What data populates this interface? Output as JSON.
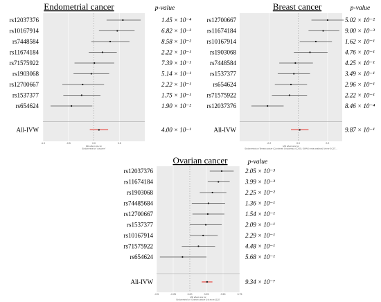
{
  "chart_data": [
    {
      "type": "forest",
      "title": "Endometrial cancer",
      "pvalue_header": "p-value",
      "xlim": [
        -1.0,
        1.0
      ],
      "xticks": [
        "-1.0",
        "-0.5",
        "0.0",
        "0.5"
      ],
      "xlabel_line1": "MR effect size for",
      "xlabel_line2": "Endometrial on 'outcome'",
      "grid": true,
      "snps": [
        {
          "label": "rs12037376",
          "est": 0.57,
          "lo": 0.25,
          "hi": 0.92,
          "p": "1.45 × 10⁻⁴"
        },
        {
          "label": "rs10167914",
          "est": 0.46,
          "lo": 0.1,
          "hi": 0.8,
          "p": "6.82 × 10⁻³"
        },
        {
          "label": "rs7448584",
          "est": 0.32,
          "lo": -0.05,
          "hi": 0.7,
          "p": "8.58 × 10⁻²"
        },
        {
          "label": "rs11674184",
          "est": 0.17,
          "lo": -0.1,
          "hi": 0.45,
          "p": "2.22 × 10⁻¹"
        },
        {
          "label": "rs71575922",
          "est": 0.01,
          "lo": -0.38,
          "hi": 0.4,
          "p": "7.39 × 10⁻¹"
        },
        {
          "label": "rs1903068",
          "est": -0.05,
          "lo": -0.4,
          "hi": 0.3,
          "p": "5.14 × 10⁻¹"
        },
        {
          "label": "rs12700667",
          "est": -0.22,
          "lo": -0.62,
          "hi": 0.2,
          "p": "2.22 × 10⁻¹"
        },
        {
          "label": "rs1537377",
          "est": -0.24,
          "lo": -0.6,
          "hi": 0.13,
          "p": "1.75 × 10⁻¹"
        },
        {
          "label": "rs654624",
          "est": -0.44,
          "lo": -0.85,
          "hi": -0.03,
          "p": "1.90 × 10⁻²"
        }
      ],
      "summary": {
        "label": "All-IVW",
        "est": 0.1,
        "lo": -0.08,
        "hi": 0.28,
        "p": "4.00 × 10⁻¹"
      }
    },
    {
      "type": "forest",
      "title": "Breast cancer",
      "pvalue_header": "p-value",
      "xlim": [
        -0.4,
        0.3
      ],
      "xticks": [
        "-0.2",
        "0.0",
        "0.2"
      ],
      "xlabel_line1": "MR effect size for",
      "xlabel_line2": "Endometrial on 'Breast cancer (Combined Oncoarray; iCOGS; GWAS meta analysis)' (ebi-a-GCST...",
      "grid": true,
      "snps": [
        {
          "label": "rs12700667",
          "est": 0.2,
          "lo": 0.09,
          "hi": 0.31,
          "p": "5.02 × 10⁻²"
        },
        {
          "label": "rs11674184",
          "est": 0.17,
          "lo": 0.07,
          "hi": 0.28,
          "p": "9.00 × 10⁻³"
        },
        {
          "label": "rs10167914",
          "est": 0.12,
          "lo": 0.01,
          "hi": 0.23,
          "p": "1.62 × 10⁻¹"
        },
        {
          "label": "rs1903068",
          "est": 0.08,
          "lo": -0.03,
          "hi": 0.2,
          "p": "4.76 × 10⁻¹"
        },
        {
          "label": "rs7448584",
          "est": -0.02,
          "lo": -0.13,
          "hi": 0.1,
          "p": "4.25 × 10⁻¹"
        },
        {
          "label": "rs1537377",
          "est": -0.03,
          "lo": -0.14,
          "hi": 0.08,
          "p": "3.49 × 10⁻¹"
        },
        {
          "label": "rs654624",
          "est": -0.05,
          "lo": -0.16,
          "hi": 0.06,
          "p": "2.96 × 10⁻¹"
        },
        {
          "label": "rs71575922",
          "est": -0.06,
          "lo": -0.18,
          "hi": 0.06,
          "p": "2.22 × 10⁻¹"
        },
        {
          "label": "rs12037376",
          "est": -0.21,
          "lo": -0.32,
          "hi": -0.1,
          "p": "8.46 × 10⁻⁴"
        }
      ],
      "summary": {
        "label": "All-IVW",
        "est": 0.01,
        "lo": -0.05,
        "hi": 0.07,
        "p": "9.87 × 10⁻¹"
      }
    },
    {
      "type": "forest",
      "title": "Ovarian cancer",
      "pvalue_header": "p-value",
      "xlim": [
        -0.5,
        0.75
      ],
      "xticks": [
        "-0.5",
        "-0.25",
        "0.00",
        "0.25",
        "0.50",
        "0.75"
      ],
      "xlabel_line1": "MR effect size for",
      "xlabel_line2": "Endometrial on 'Ovarian cancer || id:ieu-a-1120'",
      "grid": true,
      "snps": [
        {
          "label": "rs12037376",
          "est": 0.48,
          "lo": 0.3,
          "hi": 0.66,
          "p": "2.05 × 10⁻³"
        },
        {
          "label": "rs11674184",
          "est": 0.43,
          "lo": 0.27,
          "hi": 0.6,
          "p": "3.99 × 10⁻³"
        },
        {
          "label": "rs1903068",
          "est": 0.34,
          "lo": 0.15,
          "hi": 0.55,
          "p": "2.25 × 10⁻²"
        },
        {
          "label": "rs74485684",
          "est": 0.28,
          "lo": 0.03,
          "hi": 0.53,
          "p": "1.36 × 10⁻¹"
        },
        {
          "label": "rs12700667",
          "est": 0.27,
          "lo": 0.04,
          "hi": 0.52,
          "p": "1.54 × 10⁻¹"
        },
        {
          "label": "rs1537377",
          "est": 0.24,
          "lo": 0.0,
          "hi": 0.48,
          "p": "2.09 × 10⁻¹"
        },
        {
          "label": "rs10167914",
          "est": 0.2,
          "lo": 0.0,
          "hi": 0.42,
          "p": "2.29 × 10⁻¹"
        },
        {
          "label": "rs71575922",
          "est": 0.13,
          "lo": -0.12,
          "hi": 0.38,
          "p": "4.48 × 10⁻¹"
        },
        {
          "label": "rs654624",
          "est": -0.11,
          "lo": -0.45,
          "hi": 0.25,
          "p": "5.68 × 10⁻¹"
        }
      ],
      "summary": {
        "label": "All-IVW",
        "est": 0.26,
        "lo": 0.18,
        "hi": 0.34,
        "p": "9.34 × 10⁻⁷"
      }
    }
  ],
  "colors": {
    "panel_bg": "#ebebeb",
    "gridline": "#ffffff",
    "ci_line": "#4d4d4d",
    "point": "#111111",
    "summary": "#e8261d",
    "zero_line": "#9a9a9a"
  }
}
